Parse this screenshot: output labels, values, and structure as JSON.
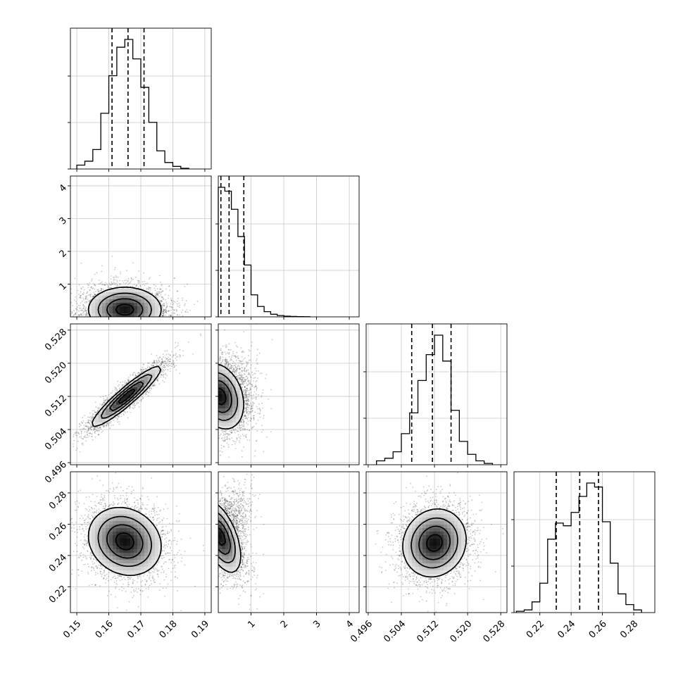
{
  "chart_data": {
    "type": "corner",
    "grid": true,
    "parameters": [
      {
        "ticks": [
          0.15,
          0.16,
          0.17,
          0.18,
          0.19
        ],
        "tick_labels": [
          "0.15",
          "0.16",
          "0.17",
          "0.18",
          "0.19"
        ],
        "range": [
          0.148,
          0.192
        ]
      },
      {
        "ticks": [
          1,
          2,
          3,
          4
        ],
        "tick_labels": [
          "1",
          "2",
          "3",
          "4"
        ],
        "range": [
          0.0,
          4.3
        ]
      },
      {
        "ticks": [
          0.496,
          0.504,
          0.512,
          0.52,
          0.528
        ],
        "tick_labels": [
          "0.496",
          "0.504",
          "0.512",
          "0.520",
          "0.528"
        ],
        "range": [
          0.4955,
          0.5295
        ]
      },
      {
        "ticks": [
          0.22,
          0.24,
          0.26,
          0.28
        ],
        "tick_labels": [
          "0.22",
          "0.24",
          "0.26",
          "0.28"
        ],
        "range": [
          0.2035,
          0.2935
        ]
      }
    ],
    "histograms": [
      {
        "quantiles": [
          0.161,
          0.166,
          0.171
        ],
        "bins": [
          0.15,
          0.1525,
          0.155,
          0.1575,
          0.16,
          0.1625,
          0.165,
          0.1675,
          0.17,
          0.1725,
          0.175,
          0.1775,
          0.18,
          0.1825,
          0.185
        ],
        "counts": [
          3,
          6,
          15,
          43,
          72,
          94,
          100,
          85,
          63,
          36,
          14,
          5,
          2,
          0.5
        ]
      },
      {
        "quantiles": [
          0.08,
          0.33,
          0.78
        ],
        "bins": [
          0.0,
          0.2,
          0.4,
          0.6,
          0.8,
          1.0,
          1.2,
          1.4,
          1.6,
          1.8,
          2.0,
          2.2,
          2.4,
          2.6,
          2.8
        ],
        "counts": [
          100,
          97,
          83,
          62,
          40,
          17,
          8,
          4,
          2,
          1,
          0.5,
          0.3,
          0.2,
          0.1
        ]
      },
      {
        "quantiles": [
          0.5065,
          0.5115,
          0.516
        ],
        "bins": [
          0.498,
          0.5,
          0.502,
          0.504,
          0.506,
          0.508,
          0.51,
          0.512,
          0.514,
          0.516,
          0.518,
          0.52,
          0.522,
          0.524,
          0.526
        ],
        "counts": [
          3,
          5,
          10,
          24,
          40,
          65,
          85,
          100,
          80,
          42,
          18,
          8,
          3,
          1
        ]
      },
      {
        "quantiles": [
          0.2305,
          0.2455,
          0.2575
        ],
        "bins": [
          0.205,
          0.21,
          0.215,
          0.22,
          0.225,
          0.23,
          0.235,
          0.24,
          0.245,
          0.25,
          0.255,
          0.26,
          0.265,
          0.27,
          0.275,
          0.28,
          0.285
        ],
        "counts": [
          1,
          2,
          8,
          22,
          55,
          67,
          65,
          75,
          87,
          97,
          94,
          68,
          37,
          14,
          6,
          2
        ]
      }
    ],
    "pair_densities": [
      {
        "x": 0,
        "y": 1,
        "mean": [
          0.165,
          0.22
        ],
        "sd": [
          0.0055,
          0.33
        ],
        "rho": 0.0
      },
      {
        "x": 0,
        "y": 2,
        "mean": [
          0.1655,
          0.512
        ],
        "sd": [
          0.0052,
          0.0035
        ],
        "rho": 0.93
      },
      {
        "x": 1,
        "y": 2,
        "mean": [
          0.05,
          0.512
        ],
        "sd": [
          0.35,
          0.0038
        ],
        "rho": -0.25
      },
      {
        "x": 0,
        "y": 3,
        "mean": [
          0.165,
          0.249
        ],
        "sd": [
          0.0055,
          0.0105
        ],
        "rho": -0.15
      },
      {
        "x": 1,
        "y": 3,
        "mean": [
          0.06,
          0.252
        ],
        "sd": [
          0.3,
          0.011
        ],
        "rho": -0.55
      },
      {
        "x": 2,
        "y": 3,
        "mean": [
          0.512,
          0.248
        ],
        "sd": [
          0.0037,
          0.0105
        ],
        "rho": 0.1
      }
    ]
  }
}
